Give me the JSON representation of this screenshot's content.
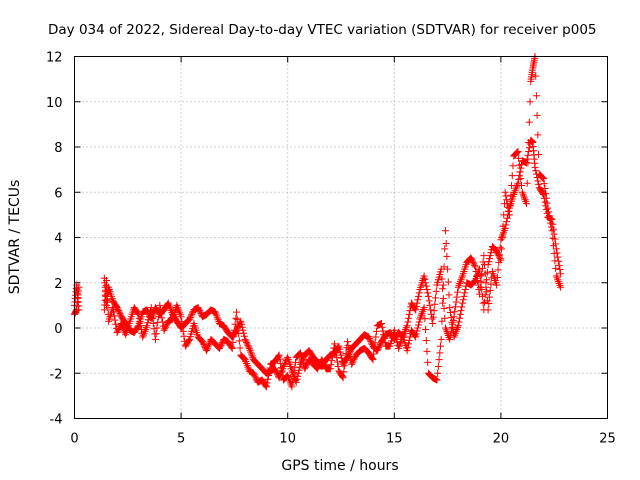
{
  "chart_data": {
    "type": "scatter",
    "title": "Day 034 of 2022, Sidereal Day-to-day VTEC variation (SDTVAR) for receiver p005",
    "xlabel": "GPS time / hours",
    "ylabel": "SDTVAR / TECUs",
    "xlim": [
      0,
      25
    ],
    "ylim": [
      -4,
      12
    ],
    "xticks": [
      0,
      5,
      10,
      15,
      20,
      25
    ],
    "yticks": [
      -4,
      -2,
      0,
      2,
      4,
      6,
      8,
      10,
      12
    ],
    "grid": true,
    "marker": "plus",
    "color": "#ff0000",
    "series": [
      {
        "name": "SDTVAR",
        "x": [
          0.0,
          0.1,
          0.2,
          1.4,
          1.5,
          1.6,
          1.8,
          2.0,
          2.2,
          2.4,
          2.6,
          2.8,
          3.0,
          3.2,
          3.4,
          3.6,
          3.8,
          4.0,
          4.2,
          4.4,
          4.6,
          4.8,
          5.0,
          5.2,
          5.4,
          5.6,
          5.8,
          6.0,
          6.2,
          6.4,
          6.6,
          6.8,
          7.0,
          7.2,
          7.4,
          7.6,
          7.8,
          8.0,
          8.2,
          8.4,
          8.6,
          8.8,
          9.0,
          9.2,
          9.4,
          9.6,
          9.8,
          10.0,
          10.2,
          10.4,
          10.6,
          10.8,
          11.0,
          11.2,
          11.4,
          11.6,
          11.8,
          12.0,
          12.2,
          12.4,
          12.6,
          12.8,
          13.0,
          13.2,
          13.4,
          13.6,
          13.8,
          14.0,
          14.2,
          14.4,
          14.6,
          14.8,
          15.0,
          15.2,
          15.4,
          15.6,
          15.8,
          16.0,
          16.2,
          16.4,
          16.6,
          16.8,
          17.0,
          17.2,
          17.4,
          17.6,
          17.8,
          18.0,
          18.2,
          18.4,
          18.6,
          18.8,
          19.0,
          19.2,
          19.4,
          19.6,
          19.8,
          20.0,
          20.2,
          20.4,
          20.6,
          20.8,
          21.0,
          21.2,
          21.4,
          21.5,
          21.6,
          21.8,
          22.0,
          22.2,
          22.4,
          22.6,
          22.8
        ],
        "y": [
          1.0,
          1.9,
          0.8,
          2.2,
          1.0,
          1.8,
          1.2,
          0.9,
          0.5,
          0.2,
          -0.1,
          -0.2,
          0.1,
          0.7,
          0.8,
          0.4,
          0.9,
          0.6,
          0.8,
          1.1,
          0.6,
          0.3,
          0.0,
          0.2,
          0.4,
          0.8,
          0.9,
          0.5,
          0.6,
          0.8,
          0.7,
          0.2,
          0.1,
          -0.2,
          -0.4,
          -0.1,
          0.3,
          -0.5,
          -0.9,
          -1.4,
          -1.6,
          -1.8,
          -2.0,
          -1.9,
          -1.8,
          -2.2,
          -1.7,
          -1.3,
          -1.9,
          -2.4,
          -1.6,
          -1.2,
          -1.0,
          -1.3,
          -1.5,
          -1.7,
          -1.4,
          -1.2,
          -1.1,
          -0.8,
          -1.6,
          -1.3,
          -0.9,
          -0.7,
          -0.5,
          -0.3,
          -0.4,
          -0.8,
          -1.0,
          -0.6,
          -0.3,
          -0.2,
          -0.5,
          -0.2,
          -0.4,
          0.1,
          1.1,
          0.8,
          1.7,
          2.3,
          1.4,
          0.2,
          1.9,
          2.6,
          0.0,
          -0.5,
          0.5,
          1.8,
          2.3,
          2.9,
          3.1,
          2.7,
          1.5,
          3.2,
          0.8,
          2.5,
          1.9,
          3.9,
          4.4,
          5.3,
          5.9,
          6.4,
          7.4,
          7.3,
          8.3,
          8.2,
          7.1,
          6.2,
          5.9,
          4.9,
          4.8,
          3.5,
          2.4
        ],
        "y2": [
          0.6,
          0.8,
          1.8,
          0.8,
          2.1,
          0.3,
          0.9,
          -0.2,
          0.2,
          -0.3,
          0.3,
          0.9,
          0.6,
          -0.4,
          0.1,
          0.9,
          -0.5,
          1.0,
          -0.1,
          0.3,
          0.4,
          1.0,
          0.5,
          -0.8,
          -0.5,
          0.2,
          -0.4,
          -0.6,
          -1.0,
          -0.5,
          -0.7,
          -0.9,
          -0.5,
          -0.6,
          -0.9,
          0.7,
          -1.2,
          -1.4,
          -1.9,
          -2.0,
          -2.4,
          -2.3,
          -2.6,
          -1.6,
          -1.5,
          -1.2,
          -2.3,
          -2.1,
          -2.6,
          -1.3,
          -1.1,
          -1.8,
          -1.4,
          -1.6,
          -1.8,
          -1.4,
          -1.8,
          -1.8,
          -0.7,
          -1.9,
          -2.2,
          -0.6,
          -1.6,
          -1.2,
          -1.0,
          -0.9,
          -1.1,
          -1.4,
          0.1,
          0.2,
          -0.8,
          -0.8,
          -0.1,
          -0.9,
          -0.3,
          -1.0,
          -0.1,
          -0.4,
          0.4,
          0.9,
          -2.0,
          -2.2,
          -2.3,
          -0.5,
          4.3,
          0.9,
          -0.4,
          0.1,
          1.1,
          2.0,
          1.9,
          2.1,
          2.6,
          0.8,
          2.8,
          3.6,
          3.4,
          3.0,
          6.0,
          5.0,
          7.6,
          7.8,
          6.0,
          5.5,
          10.9,
          11.5,
          12.0,
          6.8,
          6.6,
          5.3,
          4.3,
          2.3,
          1.8
        ]
      }
    ]
  }
}
